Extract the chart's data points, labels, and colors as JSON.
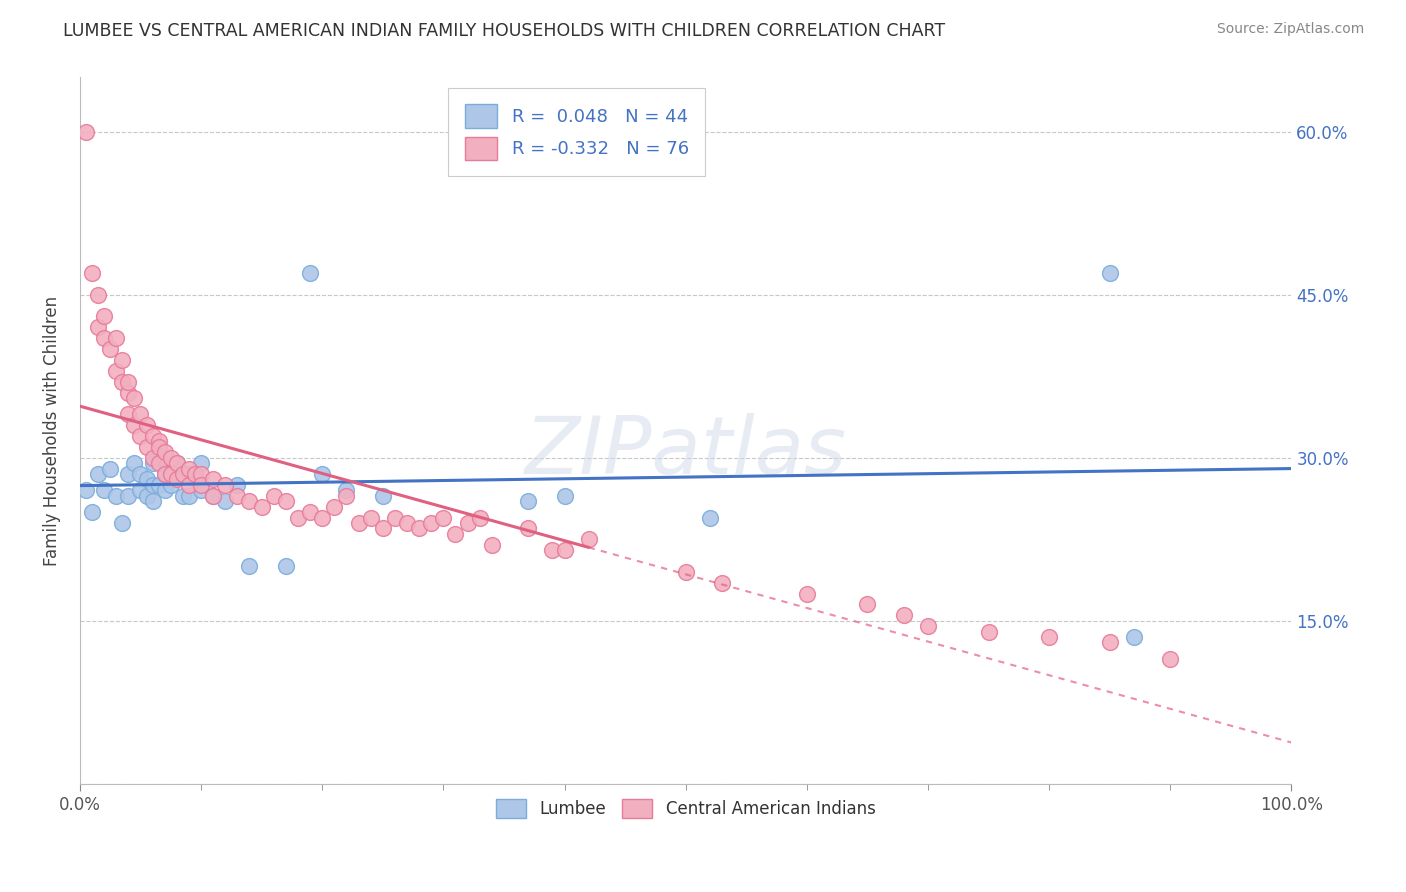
{
  "title": "LUMBEE VS CENTRAL AMERICAN INDIAN FAMILY HOUSEHOLDS WITH CHILDREN CORRELATION CHART",
  "source": "Source: ZipAtlas.com",
  "ylabel": "Family Households with Children",
  "xlim": [
    0.0,
    1.0
  ],
  "ylim": [
    0.0,
    0.65
  ],
  "ytick_vals": [
    0.0,
    0.15,
    0.3,
    0.45,
    0.6
  ],
  "yticklabels_right": [
    "",
    "15.0%",
    "30.0%",
    "45.0%",
    "60.0%"
  ],
  "xtick_vals": [
    0.0,
    1.0
  ],
  "xticklabels": [
    "0.0%",
    "100.0%"
  ],
  "lumbee_color": "#aec6e8",
  "central_color": "#f2afc0",
  "lumbee_edge": "#7aaddb",
  "central_edge": "#e87a9a",
  "line_lumbee_color": "#4472c4",
  "line_central_color": "#e06080",
  "watermark": "ZIPatlas",
  "lumbee_x": [
    0.005,
    0.01,
    0.015,
    0.02,
    0.025,
    0.03,
    0.035,
    0.04,
    0.04,
    0.045,
    0.05,
    0.05,
    0.055,
    0.055,
    0.06,
    0.06,
    0.06,
    0.065,
    0.065,
    0.07,
    0.07,
    0.07,
    0.075,
    0.08,
    0.085,
    0.09,
    0.09,
    0.095,
    0.1,
    0.1,
    0.11,
    0.12,
    0.13,
    0.14,
    0.17,
    0.19,
    0.2,
    0.22,
    0.25,
    0.37,
    0.4,
    0.52,
    0.85,
    0.87
  ],
  "lumbee_y": [
    0.27,
    0.25,
    0.285,
    0.27,
    0.29,
    0.265,
    0.24,
    0.265,
    0.285,
    0.295,
    0.285,
    0.27,
    0.28,
    0.265,
    0.295,
    0.275,
    0.26,
    0.3,
    0.275,
    0.3,
    0.285,
    0.27,
    0.275,
    0.295,
    0.265,
    0.285,
    0.265,
    0.28,
    0.295,
    0.27,
    0.265,
    0.26,
    0.275,
    0.2,
    0.2,
    0.47,
    0.285,
    0.27,
    0.265,
    0.26,
    0.265,
    0.245,
    0.47,
    0.135
  ],
  "central_x": [
    0.005,
    0.01,
    0.015,
    0.015,
    0.02,
    0.02,
    0.025,
    0.03,
    0.03,
    0.035,
    0.035,
    0.04,
    0.04,
    0.04,
    0.045,
    0.045,
    0.05,
    0.05,
    0.055,
    0.055,
    0.06,
    0.06,
    0.065,
    0.065,
    0.065,
    0.07,
    0.07,
    0.075,
    0.075,
    0.08,
    0.08,
    0.085,
    0.09,
    0.09,
    0.095,
    0.1,
    0.1,
    0.11,
    0.11,
    0.12,
    0.13,
    0.14,
    0.15,
    0.16,
    0.17,
    0.18,
    0.19,
    0.2,
    0.21,
    0.22,
    0.23,
    0.24,
    0.25,
    0.26,
    0.27,
    0.28,
    0.29,
    0.3,
    0.31,
    0.32,
    0.33,
    0.34,
    0.37,
    0.39,
    0.4,
    0.42,
    0.5,
    0.53,
    0.6,
    0.65,
    0.68,
    0.7,
    0.75,
    0.8,
    0.85,
    0.9
  ],
  "central_y": [
    0.6,
    0.47,
    0.45,
    0.42,
    0.41,
    0.43,
    0.4,
    0.38,
    0.41,
    0.39,
    0.37,
    0.36,
    0.34,
    0.37,
    0.355,
    0.33,
    0.34,
    0.32,
    0.33,
    0.31,
    0.32,
    0.3,
    0.315,
    0.295,
    0.31,
    0.305,
    0.285,
    0.3,
    0.285,
    0.295,
    0.28,
    0.285,
    0.29,
    0.275,
    0.285,
    0.285,
    0.275,
    0.28,
    0.265,
    0.275,
    0.265,
    0.26,
    0.255,
    0.265,
    0.26,
    0.245,
    0.25,
    0.245,
    0.255,
    0.265,
    0.24,
    0.245,
    0.235,
    0.245,
    0.24,
    0.235,
    0.24,
    0.245,
    0.23,
    0.24,
    0.245,
    0.22,
    0.235,
    0.215,
    0.215,
    0.225,
    0.195,
    0.185,
    0.175,
    0.165,
    0.155,
    0.145,
    0.14,
    0.135,
    0.13,
    0.115
  ]
}
